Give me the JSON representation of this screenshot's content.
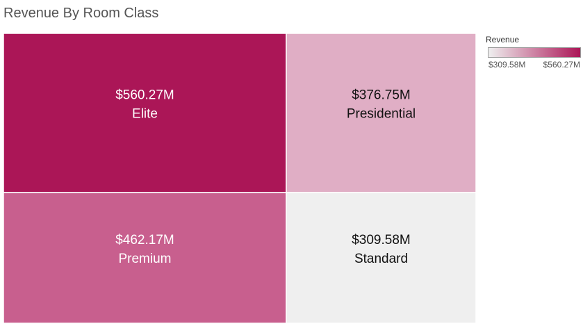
{
  "chart_data": {
    "type": "treemap",
    "title": "Revenue By Room Class",
    "measure": "Revenue",
    "items": [
      {
        "label": "Elite",
        "value": 560.27,
        "value_label": "$560.27M",
        "color": "#ab1657",
        "text_color": "#ffffff"
      },
      {
        "label": "Presidential",
        "value": 376.75,
        "value_label": "$376.75M",
        "color": "#e0aec5",
        "text_color": "#111111"
      },
      {
        "label": "Premium",
        "value": 462.17,
        "value_label": "$462.17M",
        "color": "#c85f8e",
        "text_color": "#ffffff"
      },
      {
        "label": "Standard",
        "value": 309.58,
        "value_label": "$309.58M",
        "color": "#efefef",
        "text_color": "#111111"
      }
    ],
    "legend": {
      "title": "Revenue",
      "min_label": "$309.58M",
      "max_label": "$560.27M",
      "min_color": "#efefef",
      "max_color": "#ab1657",
      "placement": "top-right"
    }
  }
}
